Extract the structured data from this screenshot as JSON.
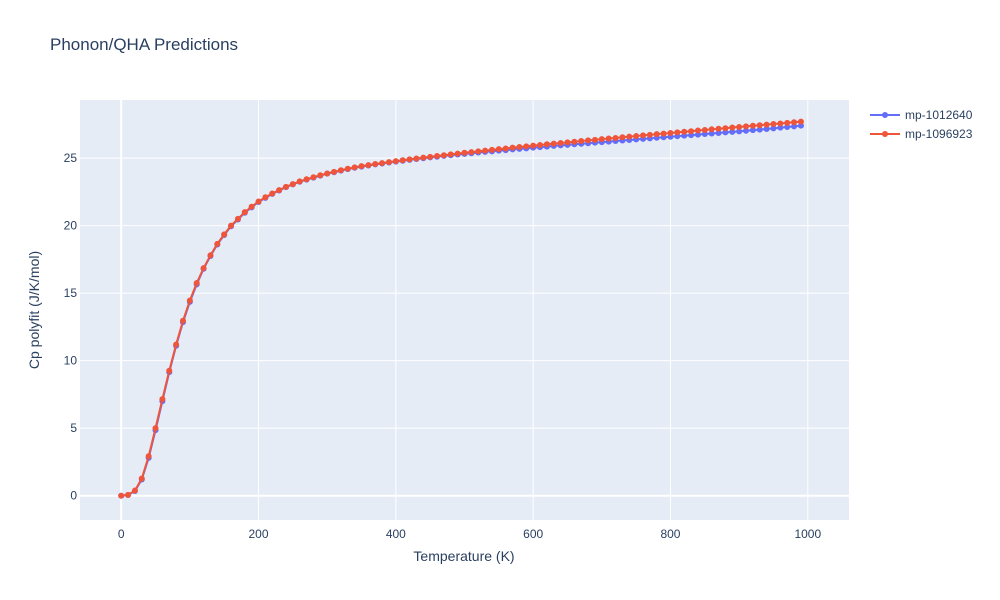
{
  "chart_data": {
    "type": "line",
    "title": "Phonon/QHA Predictions",
    "xlabel": "Temperature (K)",
    "ylabel": "Cp polyfit (J/K/mol)",
    "xlim": [
      -60,
      1060
    ],
    "ylim": [
      -1.8,
      29.3
    ],
    "xticks": [
      0,
      200,
      400,
      600,
      800,
      1000
    ],
    "yticks": [
      0,
      5,
      10,
      15,
      20,
      25
    ],
    "grid": true,
    "legend_position": "top-right",
    "colors": {
      "plot_bg": "#e5ecf6",
      "grid": "#ffffff",
      "text": "#2a3f5f"
    },
    "x": [
      0,
      10,
      20,
      30,
      40,
      50,
      60,
      70,
      80,
      90,
      100,
      110,
      120,
      130,
      140,
      150,
      160,
      170,
      180,
      190,
      200,
      210,
      220,
      230,
      240,
      250,
      260,
      270,
      280,
      290,
      300,
      310,
      320,
      330,
      340,
      350,
      360,
      370,
      380,
      390,
      400,
      410,
      420,
      430,
      440,
      450,
      460,
      470,
      480,
      490,
      500,
      510,
      520,
      530,
      540,
      550,
      560,
      570,
      580,
      590,
      600,
      610,
      620,
      630,
      640,
      650,
      660,
      670,
      680,
      690,
      700,
      710,
      720,
      730,
      740,
      750,
      760,
      770,
      780,
      790,
      800,
      810,
      820,
      830,
      840,
      850,
      860,
      870,
      880,
      890,
      900,
      910,
      920,
      930,
      940,
      950,
      960,
      970,
      980,
      990
    ],
    "series": [
      {
        "name": "mp-1012640",
        "color": "#636efa",
        "values": [
          0,
          0.05,
          0.35,
          1.2,
          2.8,
          4.85,
          7.0,
          9.15,
          11.1,
          12.85,
          14.35,
          15.65,
          16.8,
          17.75,
          18.6,
          19.3,
          19.95,
          20.45,
          20.95,
          21.35,
          21.75,
          22.05,
          22.35,
          22.6,
          22.85,
          23.05,
          23.25,
          23.4,
          23.55,
          23.7,
          23.85,
          23.95,
          24.07,
          24.18,
          24.28,
          24.37,
          24.45,
          24.53,
          24.6,
          24.67,
          24.74,
          24.8,
          24.87,
          24.93,
          24.99,
          25.05,
          25.1,
          25.16,
          25.21,
          25.26,
          25.31,
          25.36,
          25.41,
          25.46,
          25.5,
          25.55,
          25.59,
          25.64,
          25.68,
          25.72,
          25.77,
          25.81,
          25.85,
          25.9,
          25.94,
          25.98,
          26.02,
          26.06,
          26.1,
          26.14,
          26.18,
          26.22,
          26.26,
          26.3,
          26.34,
          26.38,
          26.42,
          26.46,
          26.5,
          26.54,
          26.58,
          26.62,
          26.66,
          26.7,
          26.74,
          26.78,
          26.82,
          26.86,
          26.9,
          26.94,
          26.98,
          27.02,
          27.07,
          27.11,
          27.15,
          27.2,
          27.25,
          27.3,
          27.35,
          27.4
        ]
      },
      {
        "name": "mp-1096923",
        "color": "#ef553b",
        "values": [
          0,
          0.06,
          0.38,
          1.27,
          2.92,
          5.0,
          7.15,
          9.25,
          11.2,
          12.95,
          14.45,
          15.75,
          16.85,
          17.8,
          18.65,
          19.35,
          20.0,
          20.5,
          21.0,
          21.4,
          21.78,
          22.1,
          22.38,
          22.63,
          22.87,
          23.07,
          23.27,
          23.43,
          23.58,
          23.73,
          23.86,
          23.98,
          24.1,
          24.21,
          24.31,
          24.4,
          24.48,
          24.56,
          24.63,
          24.7,
          24.77,
          24.84,
          24.9,
          24.97,
          25.03,
          25.09,
          25.15,
          25.21,
          25.27,
          25.33,
          25.39,
          25.44,
          25.5,
          25.55,
          25.61,
          25.66,
          25.71,
          25.77,
          25.82,
          25.87,
          25.92,
          25.97,
          26.02,
          26.07,
          26.12,
          26.16,
          26.21,
          26.26,
          26.31,
          26.35,
          26.4,
          26.45,
          26.49,
          26.54,
          26.59,
          26.63,
          26.68,
          26.72,
          26.77,
          26.81,
          26.86,
          26.9,
          26.95,
          26.99,
          27.04,
          27.08,
          27.13,
          27.17,
          27.21,
          27.26,
          27.3,
          27.35,
          27.39,
          27.43,
          27.48,
          27.52,
          27.56,
          27.61,
          27.65,
          27.7
        ]
      }
    ]
  }
}
